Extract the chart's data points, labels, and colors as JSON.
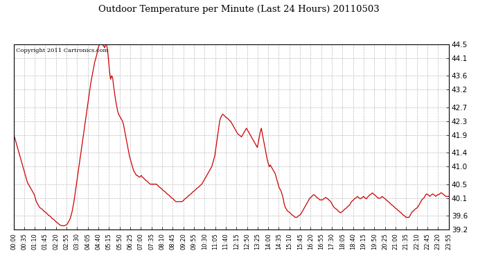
{
  "title": "Outdoor Temperature per Minute (Last 24 Hours) 20110503",
  "copyright_text": "Copyright 2011 Cartronics.com",
  "line_color": "#cc0000",
  "background_color": "#ffffff",
  "plot_bg_color": "#ffffff",
  "grid_color": "#aaaaaa",
  "ylim": [
    39.2,
    44.5
  ],
  "yticks": [
    39.2,
    39.6,
    40.1,
    40.5,
    41.0,
    41.4,
    41.9,
    42.3,
    42.7,
    43.2,
    43.6,
    44.1,
    44.5
  ],
  "xtick_labels": [
    "00:00",
    "00:35",
    "01:10",
    "01:45",
    "02:20",
    "02:55",
    "03:30",
    "04:05",
    "04:40",
    "05:15",
    "05:50",
    "06:25",
    "07:00",
    "07:35",
    "08:10",
    "08:45",
    "09:20",
    "09:55",
    "10:30",
    "11:05",
    "11:40",
    "12:15",
    "12:50",
    "13:25",
    "14:00",
    "14:35",
    "15:10",
    "15:45",
    "16:20",
    "16:55",
    "17:30",
    "18:05",
    "18:40",
    "19:15",
    "19:50",
    "20:25",
    "21:00",
    "21:35",
    "22:10",
    "22:45",
    "23:20",
    "23:55"
  ],
  "temp_profile": [
    41.9,
    41.85,
    41.75,
    41.65,
    41.55,
    41.45,
    41.35,
    41.25,
    41.15,
    41.05,
    40.95,
    40.85,
    40.75,
    40.65,
    40.55,
    40.5,
    40.45,
    40.4,
    40.35,
    40.3,
    40.25,
    40.2,
    40.1,
    40.0,
    39.95,
    39.9,
    39.85,
    39.82,
    39.8,
    39.78,
    39.75,
    39.72,
    39.7,
    39.68,
    39.65,
    39.62,
    39.6,
    39.58,
    39.55,
    39.52,
    39.5,
    39.48,
    39.45,
    39.42,
    39.4,
    39.38,
    39.35,
    39.33,
    39.32,
    39.31,
    39.31,
    39.31,
    39.32,
    39.33,
    39.35,
    39.4,
    39.45,
    39.5,
    39.6,
    39.7,
    39.85,
    40.0,
    40.2,
    40.4,
    40.6,
    40.8,
    41.0,
    41.2,
    41.4,
    41.6,
    41.8,
    42.0,
    42.2,
    42.4,
    42.6,
    42.8,
    43.0,
    43.2,
    43.4,
    43.55,
    43.7,
    43.85,
    44.0,
    44.1,
    44.2,
    44.35,
    44.45,
    44.5,
    44.52,
    44.5,
    44.48,
    44.45,
    44.4,
    44.5,
    44.48,
    44.3,
    44.0,
    43.7,
    43.5,
    43.6,
    43.55,
    43.3,
    43.1,
    42.9,
    42.75,
    42.6,
    42.5,
    42.45,
    42.4,
    42.35,
    42.3,
    42.2,
    42.05,
    41.9,
    41.75,
    41.6,
    41.45,
    41.3,
    41.2,
    41.1,
    41.0,
    40.9,
    40.85,
    40.8,
    40.75,
    40.75,
    40.72,
    40.7,
    40.72,
    40.75,
    40.7,
    40.68,
    40.65,
    40.62,
    40.6,
    40.58,
    40.55,
    40.52,
    40.5,
    40.5,
    40.5,
    40.5,
    40.5,
    40.5,
    40.5,
    40.48,
    40.45,
    40.42,
    40.4,
    40.38,
    40.35,
    40.32,
    40.3,
    40.28,
    40.25,
    40.22,
    40.2,
    40.18,
    40.15,
    40.12,
    40.1,
    40.08,
    40.05,
    40.02,
    40.0,
    40.0,
    40.0,
    40.0,
    40.0,
    40.0,
    40.0,
    40.02,
    40.05,
    40.08,
    40.1,
    40.12,
    40.15,
    40.18,
    40.2,
    40.22,
    40.25,
    40.28,
    40.3,
    40.32,
    40.35,
    40.38,
    40.4,
    40.42,
    40.45,
    40.48,
    40.5,
    40.55,
    40.6,
    40.65,
    40.7,
    40.75,
    40.8,
    40.85,
    40.9,
    40.95,
    41.0,
    41.1,
    41.2,
    41.3,
    41.5,
    41.7,
    41.9,
    42.1,
    42.3,
    42.4,
    42.45,
    42.5,
    42.48,
    42.45,
    42.42,
    42.4,
    42.38,
    42.35,
    42.32,
    42.3,
    42.25,
    42.2,
    42.15,
    42.1,
    42.05,
    42.0,
    41.95,
    41.92,
    41.9,
    41.88,
    41.85,
    41.9,
    41.95,
    42.0,
    42.05,
    42.1,
    42.05,
    42.0,
    41.95,
    41.9,
    41.85,
    41.8,
    41.75,
    41.7,
    41.65,
    41.6,
    41.55,
    41.7,
    41.85,
    42.0,
    42.1,
    41.95,
    41.8,
    41.65,
    41.5,
    41.35,
    41.2,
    41.1,
    41.0,
    41.05,
    41.0,
    40.95,
    40.9,
    40.85,
    40.8,
    40.7,
    40.6,
    40.5,
    40.4,
    40.35,
    40.3,
    40.2,
    40.1,
    39.95,
    39.85,
    39.8,
    39.75,
    39.72,
    39.7,
    39.68,
    39.65,
    39.62,
    39.6,
    39.58,
    39.55,
    39.55,
    39.55,
    39.58,
    39.6,
    39.62,
    39.65,
    39.7,
    39.75,
    39.8,
    39.85,
    39.9,
    39.95,
    40.0,
    40.05,
    40.1,
    40.12,
    40.15,
    40.18,
    40.2,
    40.18,
    40.15,
    40.12,
    40.1,
    40.08,
    40.05,
    40.05,
    40.05,
    40.05,
    40.08,
    40.1,
    40.12,
    40.1,
    40.08,
    40.05,
    40.03,
    40.0,
    39.95,
    39.9,
    39.85,
    39.82,
    39.8,
    39.78,
    39.75,
    39.72,
    39.7,
    39.68,
    39.7,
    39.72,
    39.75,
    39.78,
    39.8,
    39.82,
    39.85,
    39.88,
    39.9,
    39.95,
    40.0,
    40.02,
    40.05,
    40.08,
    40.1,
    40.12,
    40.15,
    40.12,
    40.1,
    40.08,
    40.1,
    40.12,
    40.15,
    40.12,
    40.1,
    40.08,
    40.12,
    40.15,
    40.18,
    40.2,
    40.22,
    40.25,
    40.22,
    40.2,
    40.18,
    40.15,
    40.12,
    40.1,
    40.1,
    40.1,
    40.12,
    40.15,
    40.12,
    40.1,
    40.08,
    40.05,
    40.03,
    40.0,
    39.98,
    39.95,
    39.92,
    39.9,
    39.88,
    39.85,
    39.82,
    39.8,
    39.78,
    39.75,
    39.73,
    39.7,
    39.68,
    39.65,
    39.62,
    39.6,
    39.58,
    39.55,
    39.55,
    39.55,
    39.55,
    39.6,
    39.65,
    39.7,
    39.72,
    39.75,
    39.78,
    39.8,
    39.82,
    39.85,
    39.9,
    39.95,
    40.0,
    40.05,
    40.08,
    40.1,
    40.15,
    40.2,
    40.22,
    40.2,
    40.18,
    40.15,
    40.18,
    40.2,
    40.22,
    40.2,
    40.18,
    40.15,
    40.18,
    40.2,
    40.2,
    40.22,
    40.25,
    40.25,
    40.22,
    40.2,
    40.18,
    40.15,
    40.15,
    40.15,
    40.15
  ]
}
